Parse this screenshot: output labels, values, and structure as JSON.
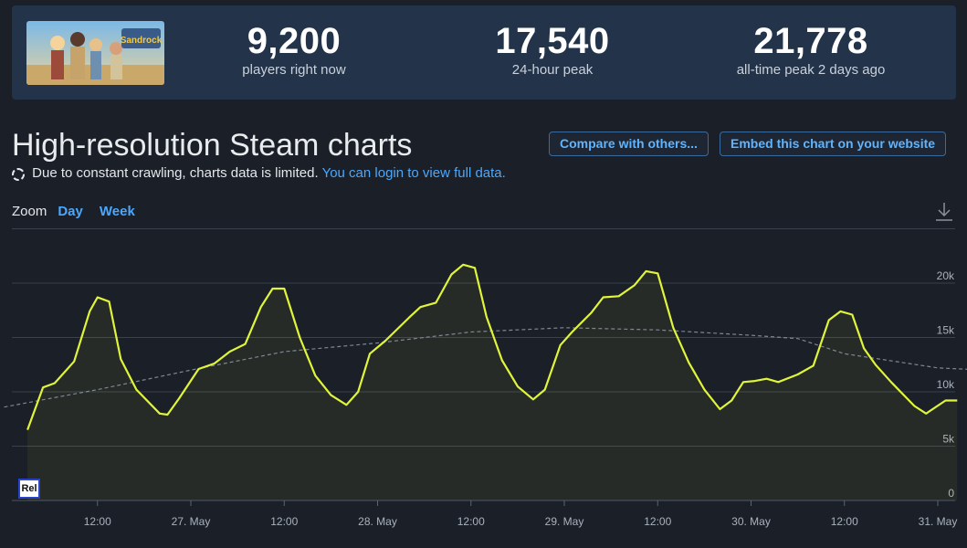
{
  "header": {
    "game_logo_text": "Sandrock",
    "stats": [
      {
        "value": "9,200",
        "label": "players right now"
      },
      {
        "value": "17,540",
        "label": "24-hour peak"
      },
      {
        "value": "21,778",
        "label": "all-time peak 2 days ago"
      }
    ]
  },
  "page_title": "High-resolution Steam charts",
  "buttons": {
    "compare": "Compare with others...",
    "embed": "Embed this chart on your website"
  },
  "notice": {
    "text": "Due to constant crawling, charts data is limited.",
    "link": "You can login to view full data."
  },
  "zoom": {
    "label": "Zoom",
    "day": "Day",
    "week": "Week"
  },
  "rel_label": "Rel",
  "colors": {
    "players_line": "#e0f43a",
    "average_line": "#7e8794",
    "background": "#1b1f27",
    "header_bg": "#23334a",
    "link": "#4aa8ff"
  },
  "chart_data": {
    "type": "line",
    "xlabel": "",
    "ylabel": "",
    "ylim": [
      0,
      25000
    ],
    "y_ticks": [
      "0",
      "5k",
      "10k",
      "15k",
      "20k"
    ],
    "x_ticks": [
      "12:00",
      "27. May",
      "12:00",
      "28. May",
      "12:00",
      "29. May",
      "12:00",
      "30. May",
      "12:00",
      "31. May"
    ],
    "grid": true,
    "series": [
      {
        "name": "",
        "style": "solid-area",
        "points": [
          [
            "2024-05-26 03:00",
            6500
          ],
          [
            "2024-05-26 05:00",
            10400
          ],
          [
            "2024-05-26 06:30",
            10800
          ],
          [
            "2024-05-26 09:00",
            12800
          ],
          [
            "2024-05-26 11:00",
            17400
          ],
          [
            "2024-05-26 12:00",
            18700
          ],
          [
            "2024-05-26 13:30",
            18300
          ],
          [
            "2024-05-26 15:00",
            13000
          ],
          [
            "2024-05-26 17:00",
            10200
          ],
          [
            "2024-05-26 20:00",
            8000
          ],
          [
            "2024-05-26 21:00",
            7900
          ],
          [
            "2024-05-26 22:30",
            9400
          ],
          [
            "2024-05-27 01:00",
            12100
          ],
          [
            "2024-05-27 03:00",
            12600
          ],
          [
            "2024-05-27 05:00",
            13700
          ],
          [
            "2024-05-27 07:00",
            14400
          ],
          [
            "2024-05-27 09:00",
            17800
          ],
          [
            "2024-05-27 10:30",
            19500
          ],
          [
            "2024-05-27 12:00",
            19500
          ],
          [
            "2024-05-27 14:00",
            15000
          ],
          [
            "2024-05-27 16:00",
            11500
          ],
          [
            "2024-05-27 18:00",
            9700
          ],
          [
            "2024-05-27 20:00",
            8800
          ],
          [
            "2024-05-27 21:30",
            10000
          ],
          [
            "2024-05-27 23:00",
            13500
          ],
          [
            "2024-05-28 01:00",
            14700
          ],
          [
            "2024-05-28 04:00",
            16800
          ],
          [
            "2024-05-28 05:30",
            17800
          ],
          [
            "2024-05-28 07:30",
            18200
          ],
          [
            "2024-05-28 09:30",
            20800
          ],
          [
            "2024-05-28 11:00",
            21700
          ],
          [
            "2024-05-28 12:30",
            21400
          ],
          [
            "2024-05-28 14:00",
            16900
          ],
          [
            "2024-05-28 16:00",
            12900
          ],
          [
            "2024-05-28 18:00",
            10500
          ],
          [
            "2024-05-28 20:00",
            9300
          ],
          [
            "2024-05-28 21:30",
            10200
          ],
          [
            "2024-05-28 23:30",
            14300
          ],
          [
            "2024-05-29 01:00",
            15500
          ],
          [
            "2024-05-29 03:30",
            17300
          ],
          [
            "2024-05-29 05:00",
            18700
          ],
          [
            "2024-05-29 07:00",
            18800
          ],
          [
            "2024-05-29 09:00",
            19800
          ],
          [
            "2024-05-29 10:30",
            21100
          ],
          [
            "2024-05-29 12:00",
            20900
          ],
          [
            "2024-05-29 14:00",
            15900
          ],
          [
            "2024-05-29 16:00",
            12700
          ],
          [
            "2024-05-29 18:00",
            10200
          ],
          [
            "2024-05-29 20:00",
            8400
          ],
          [
            "2024-05-29 21:30",
            9200
          ],
          [
            "2024-05-29 23:00",
            10900
          ],
          [
            "2024-05-30 00:30",
            11000
          ],
          [
            "2024-05-30 02:00",
            11200
          ],
          [
            "2024-05-30 03:30",
            10900
          ],
          [
            "2024-05-30 06:00",
            11600
          ],
          [
            "2024-05-30 08:00",
            12400
          ],
          [
            "2024-05-30 10:00",
            16600
          ],
          [
            "2024-05-30 11:30",
            17400
          ],
          [
            "2024-05-30 13:00",
            17100
          ],
          [
            "2024-05-30 14:30",
            14000
          ],
          [
            "2024-05-30 16:00",
            12500
          ],
          [
            "2024-05-30 18:00",
            10900
          ],
          [
            "2024-05-30 21:00",
            8700
          ],
          [
            "2024-05-30 22:30",
            8000
          ],
          [
            "2024-05-31 01:00",
            9200
          ],
          [
            "2024-05-31 02:30",
            9200
          ]
        ]
      },
      {
        "name": "",
        "style": "dashed",
        "points": [
          [
            "2024-05-26 00:00",
            8600
          ],
          [
            "2024-05-26 06:00",
            9400
          ],
          [
            "2024-05-26 12:00",
            10200
          ],
          [
            "2024-05-27 00:00",
            12000
          ],
          [
            "2024-05-27 12:00",
            13700
          ],
          [
            "2024-05-28 00:00",
            14500
          ],
          [
            "2024-05-28 12:00",
            15500
          ],
          [
            "2024-05-29 00:00",
            15900
          ],
          [
            "2024-05-29 12:00",
            15700
          ],
          [
            "2024-05-30 00:00",
            15200
          ],
          [
            "2024-05-30 06:00",
            14900
          ],
          [
            "2024-05-30 12:00",
            13500
          ],
          [
            "2024-05-31 00:00",
            12200
          ],
          [
            "2024-05-31 06:00",
            12000
          ]
        ]
      }
    ]
  }
}
